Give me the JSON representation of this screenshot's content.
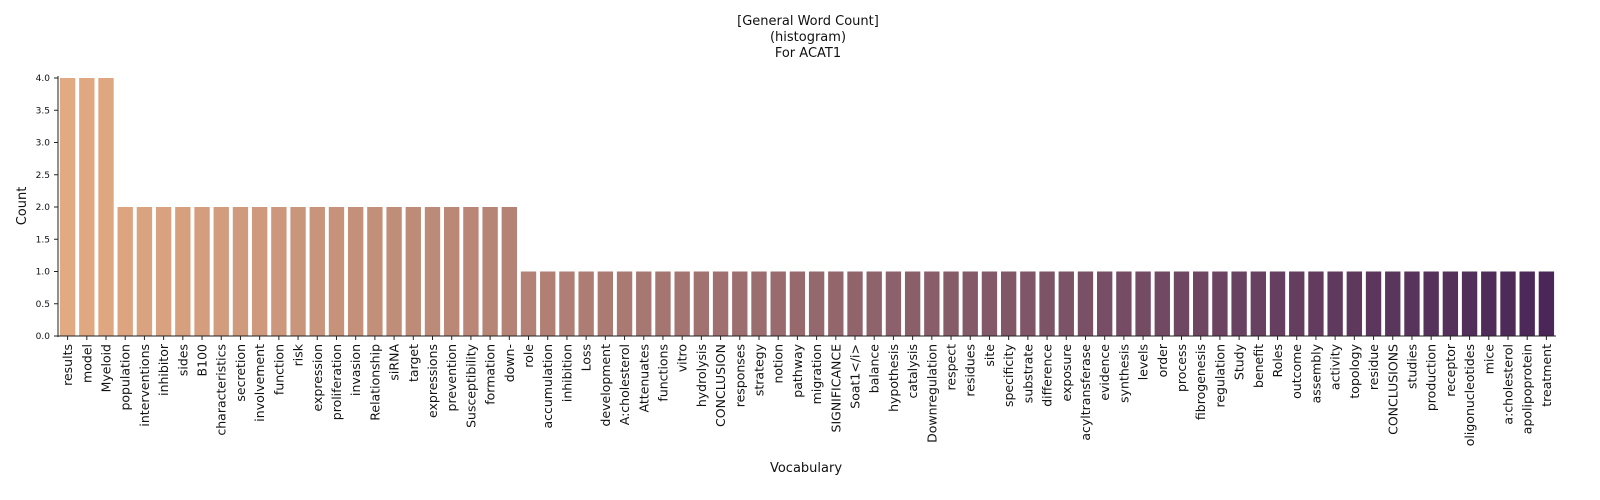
{
  "chart_data": {
    "type": "bar",
    "title_lines": [
      "[General Word Count]",
      "(histogram)",
      "For ACAT1"
    ],
    "xlabel": "Vocabulary",
    "ylabel": "Count",
    "ylim": [
      0,
      4.0
    ],
    "yticks": [
      "0.0",
      "0.5",
      "1.0",
      "1.5",
      "2.0",
      "2.5",
      "3.0",
      "3.5",
      "4.0"
    ],
    "grid": false,
    "palette": "flare (orange to purple gradient)",
    "color_start": "#e2aa82",
    "color_end": "#4a2758",
    "categories": [
      "results",
      "model",
      "Myeloid",
      "population",
      "interventions",
      "inhibitor",
      "sides",
      "B100",
      "characteristics",
      "secretion",
      "involvement",
      "function",
      "risk",
      "expression",
      "proliferation",
      "invasion",
      "Relationship",
      "siRNA",
      "target",
      "expressions",
      "prevention",
      "Susceptibility",
      "formation",
      "down-",
      "role",
      "accumulation",
      "inhibition",
      "Loss",
      "development",
      "A:cholesterol",
      "Attenuates",
      "functions",
      "vitro",
      "hydrolysis",
      "CONCLUSION",
      "responses",
      "strategy",
      "notion",
      "pathway",
      "migration",
      "SIGNIFICANCE",
      "Soat1</i>",
      "balance",
      "hypothesis",
      "catalysis",
      "Downregulation",
      "respect",
      "residues",
      "site",
      "specificity",
      "substrate",
      "difference",
      "exposure",
      "acyltransferase",
      "evidence",
      "synthesis",
      "levels",
      "order",
      "process",
      "fibrogenesis",
      "regulation",
      "Study",
      "benefit",
      "Roles",
      "outcome",
      "assembly",
      "activity",
      "topology",
      "residue",
      "CONCLUSIONS",
      "studies",
      "production",
      "receptor",
      "oligonucleotides",
      "mice",
      "a:cholesterol",
      "apolipoprotein",
      "treatment"
    ],
    "values": [
      4,
      4,
      4,
      2,
      2,
      2,
      2,
      2,
      2,
      2,
      2,
      2,
      2,
      2,
      2,
      2,
      2,
      2,
      2,
      2,
      2,
      2,
      2,
      2,
      1,
      1,
      1,
      1,
      1,
      1,
      1,
      1,
      1,
      1,
      1,
      1,
      1,
      1,
      1,
      1,
      1,
      1,
      1,
      1,
      1,
      1,
      1,
      1,
      1,
      1,
      1,
      1,
      1,
      1,
      1,
      1,
      1,
      1,
      1,
      1,
      1,
      1,
      1,
      1,
      1,
      1,
      1,
      1,
      1,
      1,
      1,
      1,
      1,
      1,
      1,
      1,
      1,
      1
    ]
  }
}
